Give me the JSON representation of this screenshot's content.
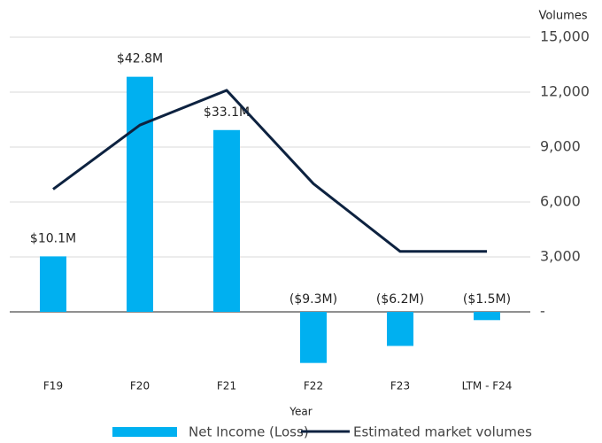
{
  "chart_data": {
    "type": "bar",
    "categories": [
      "F19",
      "F20",
      "F21",
      "F22",
      "F23",
      "LTM - F24"
    ],
    "x_label": "Year",
    "y2_label": "Volumes",
    "series": [
      {
        "name": "Net Income (Loss)",
        "type": "bar",
        "color": "#00b0f0",
        "axis": "y",
        "values": [
          10.1,
          42.8,
          33.1,
          -9.3,
          -6.2,
          -1.5
        ],
        "value_labels": [
          "$10.1M",
          "$42.8M",
          "$33.1M",
          "($9.3M)",
          "($6.2M)",
          "($1.5M)"
        ]
      },
      {
        "name": "Estimated market volumes",
        "type": "line",
        "color": "#0d2240",
        "axis": "y2",
        "values": [
          6700,
          10200,
          12100,
          7000,
          3300,
          3300
        ]
      }
    ],
    "ylim": [
      -10,
      50
    ],
    "y2lim": [
      -3000,
      15000
    ],
    "y2ticks": [
      {
        "value": 15000,
        "label": "15,000"
      },
      {
        "value": 12000,
        "label": "12,000"
      },
      {
        "value": 9000,
        "label": "9,000"
      },
      {
        "value": 6000,
        "label": "6,000"
      },
      {
        "value": 3000,
        "label": "3,000"
      },
      {
        "value": 0,
        "label": "-"
      }
    ],
    "grid": true,
    "legend": "bottom"
  }
}
